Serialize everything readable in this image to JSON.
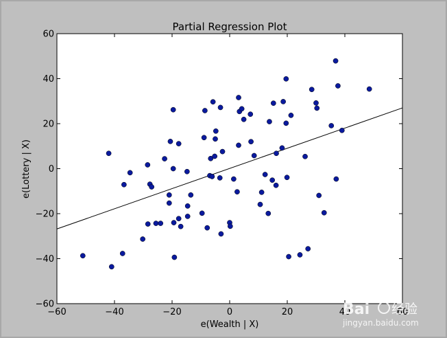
{
  "chart_data": {
    "type": "scatter",
    "title": "Partial Regression Plot",
    "xlabel": "e(Wealth | X)",
    "ylabel": "e(Lottery | X)",
    "xlim": [
      -60,
      60
    ],
    "ylim": [
      -60,
      60
    ],
    "xticks": [
      -60,
      -40,
      -20,
      0,
      20,
      40,
      60
    ],
    "yticks": [
      -60,
      -40,
      -20,
      0,
      20,
      40,
      60
    ],
    "xtick_labels": [
      "−60",
      "−40",
      "−20",
      "0",
      "20",
      "40",
      "60"
    ],
    "ytick_labels": [
      "−60",
      "−40",
      "−20",
      "0",
      "20",
      "40",
      "60"
    ],
    "grid": false,
    "point_color": "#0a1a9e",
    "line_color": "#000000",
    "fit_line": {
      "x": [
        -60,
        60
      ],
      "y": [
        -26.8,
        27.0
      ]
    },
    "points": [
      [
        -51,
        -38.7
      ],
      [
        -42,
        6.8
      ],
      [
        -41,
        -43.6
      ],
      [
        -37.2,
        -37.7
      ],
      [
        -36.7,
        -7.1
      ],
      [
        -34.6,
        -1.8
      ],
      [
        -30.2,
        -31.3
      ],
      [
        -28.5,
        1.7
      ],
      [
        -28.4,
        -24.6
      ],
      [
        -27.7,
        -6.9
      ],
      [
        -27.1,
        -8.1
      ],
      [
        -25.6,
        -24.3
      ],
      [
        -24,
        -24.3
      ],
      [
        -22.6,
        4.4
      ],
      [
        -21,
        -11.7
      ],
      [
        -21,
        -15.3
      ],
      [
        -20.6,
        12.1
      ],
      [
        -19.6,
        26.2
      ],
      [
        -19.6,
        0
      ],
      [
        -19.4,
        -24
      ],
      [
        -19.2,
        -39.4
      ],
      [
        -17.7,
        11.1
      ],
      [
        -17.7,
        -22.2
      ],
      [
        -17,
        -25.7
      ],
      [
        -14.8,
        -1.3
      ],
      [
        -14.6,
        -21.2
      ],
      [
        -14.6,
        -16.6
      ],
      [
        -13.5,
        -11.7
      ],
      [
        -9.6,
        -19.8
      ],
      [
        -8.9,
        13.8
      ],
      [
        -8.6,
        25.8
      ],
      [
        -7.8,
        -26.3
      ],
      [
        -6.9,
        -3.1
      ],
      [
        -6.6,
        4.5
      ],
      [
        -6.1,
        -3.5
      ],
      [
        -5.8,
        29.7
      ],
      [
        -5.2,
        5.5
      ],
      [
        -5,
        13.2
      ],
      [
        -4.8,
        16.7
      ],
      [
        -3.4,
        -4.1
      ],
      [
        -3.2,
        27.2
      ],
      [
        -3,
        -29
      ],
      [
        -2.5,
        7.6
      ],
      [
        0,
        -24
      ],
      [
        0.2,
        -25.6
      ],
      [
        1.4,
        -4.6
      ],
      [
        2.6,
        -10.3
      ],
      [
        3.1,
        10.4
      ],
      [
        3.1,
        31.6
      ],
      [
        3.4,
        25.4
      ],
      [
        4.2,
        26.6
      ],
      [
        4.9,
        21.9
      ],
      [
        7.2,
        24.2
      ],
      [
        7.4,
        12
      ],
      [
        8.5,
        5.8
      ],
      [
        10.6,
        -15.9
      ],
      [
        11.1,
        -10.5
      ],
      [
        12.3,
        -2.6
      ],
      [
        13.4,
        -19.9
      ],
      [
        13.8,
        20.9
      ],
      [
        14.8,
        -5.1
      ],
      [
        15.2,
        29.1
      ],
      [
        16.1,
        -7.4
      ],
      [
        16.2,
        6.8
      ],
      [
        18.2,
        9.2
      ],
      [
        18.6,
        29.8
      ],
      [
        19.6,
        20.2
      ],
      [
        19.6,
        39.9
      ],
      [
        19.9,
        -3.9
      ],
      [
        20.5,
        -39.1
      ],
      [
        21.3,
        23.7
      ],
      [
        24.4,
        -38.3
      ],
      [
        26.2,
        5.4
      ],
      [
        27.2,
        -35.6
      ],
      [
        28.5,
        35.2
      ],
      [
        30,
        29.2
      ],
      [
        30.3,
        26.9
      ],
      [
        31,
        -11.9
      ],
      [
        32.8,
        -19.6
      ],
      [
        35.3,
        19.1
      ],
      [
        36.8,
        47.9
      ],
      [
        37,
        -4.6
      ],
      [
        37.6,
        36.8
      ],
      [
        39,
        17
      ],
      [
        48.5,
        35.4
      ]
    ]
  },
  "watermark": {
    "brand": "Bai",
    "brand_cn": "经验",
    "url": "jingyan.baidu.com"
  }
}
